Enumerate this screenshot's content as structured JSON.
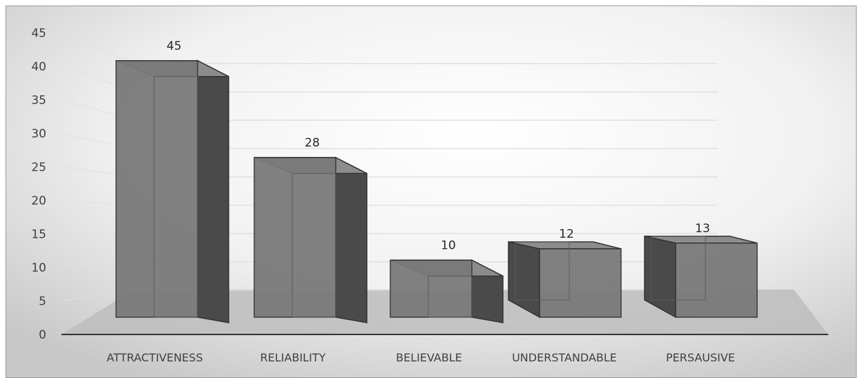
{
  "chart_data": {
    "type": "bar",
    "title": "",
    "xlabel": "",
    "ylabel": "",
    "categories": [
      "ATTRACTIVENESS",
      "RELIABILITY",
      "BELIEVABLE",
      "UNDERSTANDABLE",
      "PERSAUSIVE"
    ],
    "values": [
      45,
      28,
      10,
      12,
      13
    ],
    "data_labels": [
      "45",
      "28",
      "10",
      "12",
      "13"
    ],
    "ylim": [
      0,
      45
    ],
    "yticks": [
      "0",
      "5",
      "10",
      "15",
      "20",
      "25",
      "30",
      "35",
      "40",
      "45"
    ],
    "grid": true,
    "style": "3d-column",
    "colors": {
      "bar": "#7a7a7a",
      "bar_side": "#4a4a4a",
      "floor": "#bdbdbd",
      "background": "#f2f2f2"
    }
  }
}
